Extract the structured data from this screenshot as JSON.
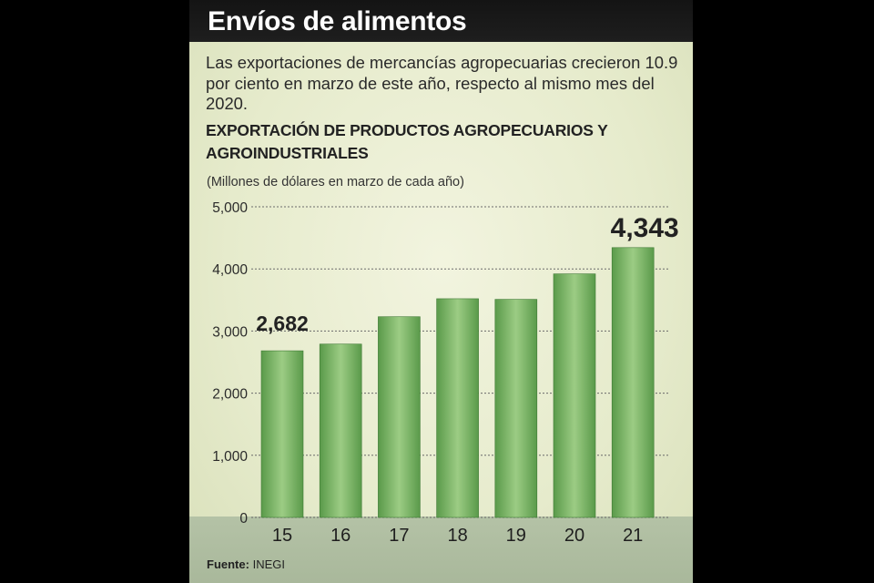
{
  "header": {
    "title": "Envíos de alimentos"
  },
  "subtitle": "Las exportaciones de mercancías agropecuarias crecieron 10.9 por ciento en marzo de este año, respecto al mismo mes del 2020.",
  "source": {
    "label": "Fuente:",
    "value": "INEGI"
  },
  "colors": {
    "bar_dark": "#5a9a4a",
    "bar_light": "#9ccc84",
    "bar_edge": "#3f7a35"
  },
  "chart_data": {
    "type": "bar",
    "title": "EXPORTACIÓN DE PRODUCTOS AGROPECUARIOS Y AGROINDUSTRIALES",
    "ylabel": "(Millones de dólares en marzo de cada año)",
    "xlabel": "",
    "categories": [
      "15",
      "16",
      "17",
      "18",
      "19",
      "20",
      "21"
    ],
    "values": [
      2682,
      2790,
      3230,
      3520,
      3510,
      3920,
      4343
    ],
    "ylim": [
      0,
      5000
    ],
    "yticks": [
      0,
      1000,
      2000,
      3000,
      4000,
      5000
    ],
    "ytick_labels": [
      "0",
      "1,000",
      "2,000",
      "3,000",
      "4,000",
      "5,000"
    ],
    "grid": true,
    "data_labels": [
      {
        "index": 0,
        "text": "2,682"
      },
      {
        "index": 6,
        "text": "4,343"
      }
    ]
  }
}
